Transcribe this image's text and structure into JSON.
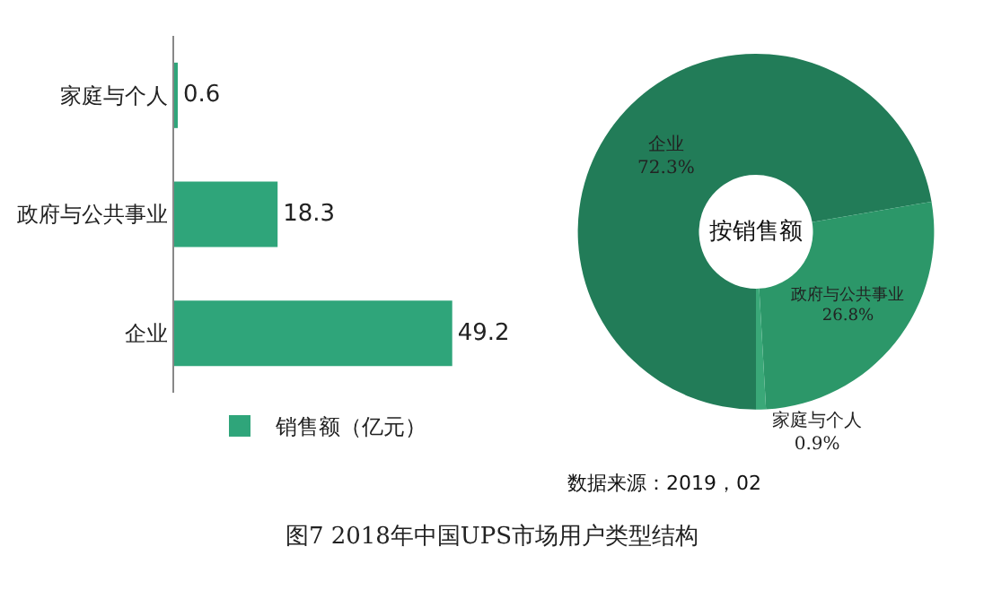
{
  "chart_data": [
    {
      "type": "bar",
      "orientation": "horizontal",
      "title": "图7  2018年中国UPS市场用户类型结构",
      "categories": [
        "家庭与个人",
        "政府与公共事业",
        "企业"
      ],
      "series": [
        {
          "name": "销售额（亿元）",
          "color": "#2fa57a",
          "values": [
            0.6,
            18.3,
            49.2
          ]
        }
      ],
      "data_labels": true,
      "legend": "bottom",
      "grid": false
    },
    {
      "type": "donut",
      "title": "按销售额",
      "categories": [
        "企业",
        "政府与公共事业",
        "家庭与个人"
      ],
      "values": [
        72.3,
        26.8,
        0.9
      ],
      "colors": [
        "#227c58",
        "#2c9769",
        "#3aa878"
      ],
      "value_labels": [
        "72.3%",
        "26.8%",
        "0.9%"
      ],
      "legend": false,
      "annotations": [
        "数据来源：2019，02"
      ]
    }
  ]
}
